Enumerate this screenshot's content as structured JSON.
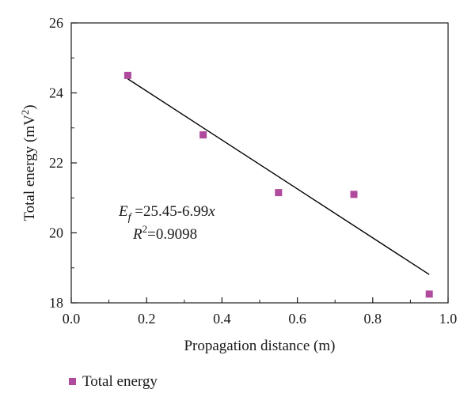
{
  "chart_data": {
    "type": "scatter",
    "xlabel": "Propagation distance (m)",
    "ylabel_base": "Total energy (mV",
    "ylabel_sup": "2",
    "ylabel_close": ")",
    "xlim": [
      0.0,
      1.0
    ],
    "ylim": [
      18,
      26
    ],
    "x_ticks": [
      "0.0",
      "0.2",
      "0.4",
      "0.6",
      "0.8",
      "1.0"
    ],
    "y_ticks": [
      "18",
      "20",
      "22",
      "24",
      "26"
    ],
    "grid": false,
    "series": [
      {
        "name": "Total energy",
        "color": "#b04a9c",
        "marker": "square",
        "x": [
          0.15,
          0.35,
          0.55,
          0.75,
          0.95
        ],
        "y": [
          24.5,
          22.8,
          21.15,
          21.1,
          18.25
        ]
      }
    ],
    "fit": {
      "intercept": 25.45,
      "slope": -6.99,
      "x_range": [
        0.15,
        0.95
      ],
      "color": "#000000"
    },
    "annotation": {
      "eq_var": "E",
      "eq_sub": "f",
      "eq_rest": " =25.45-6.99",
      "eq_x": "x",
      "r2_var": "R",
      "r2_sup": "2",
      "r2_rest": "=0.9098"
    },
    "legend": {
      "position": "bottom-left",
      "label": "Total energy"
    }
  }
}
